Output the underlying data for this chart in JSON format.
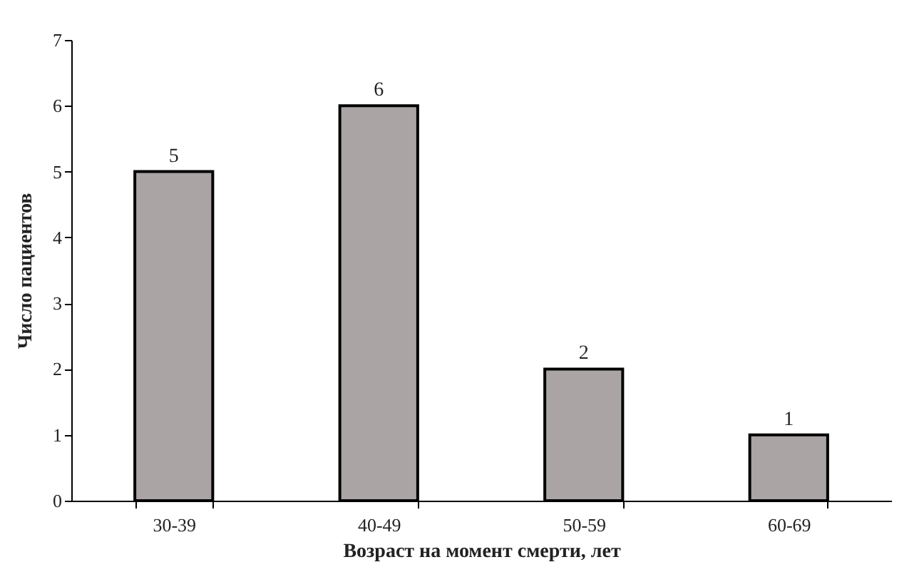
{
  "chart_data": {
    "type": "bar",
    "xlabel": "Возраст на момент смерти, лет",
    "ylabel": "Число пациентов",
    "categories": [
      "30-39",
      "40-49",
      "50-59",
      "60-69"
    ],
    "values": [
      5,
      6,
      2,
      1
    ],
    "color": "#aaa4a4",
    "ylim": [
      0,
      7
    ],
    "yticks": [
      0,
      1,
      2,
      3,
      4,
      5,
      6,
      7
    ],
    "data_labels": true
  }
}
